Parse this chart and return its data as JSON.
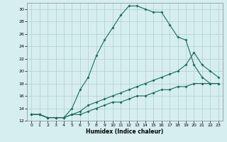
{
  "xlabel": "Humidex (Indice chaleur)",
  "bg_color": "#d6eef0",
  "grid_color": "#b0cdd0",
  "line_color": "#1a6b5a",
  "xlim": [
    -0.5,
    23.5
  ],
  "ylim": [
    12,
    31
  ],
  "xticks": [
    0,
    1,
    2,
    3,
    4,
    5,
    6,
    7,
    8,
    9,
    10,
    11,
    12,
    13,
    14,
    15,
    16,
    17,
    18,
    19,
    20,
    21,
    22,
    23
  ],
  "yticks": [
    12,
    14,
    16,
    18,
    20,
    22,
    24,
    26,
    28,
    30
  ],
  "line1_x": [
    0,
    1,
    2,
    3,
    4,
    5,
    6,
    7,
    8,
    9,
    10,
    11,
    12,
    13,
    14,
    15,
    16,
    17,
    18,
    19,
    20,
    21,
    22,
    23
  ],
  "line1_y": [
    13,
    13,
    12.5,
    12.5,
    12.5,
    14,
    17,
    19,
    22.5,
    25,
    27,
    29,
    30.5,
    30.5,
    30,
    29.5,
    29.5,
    27.5,
    25.5,
    25,
    21,
    19,
    18,
    18
  ],
  "line2_x": [
    0,
    1,
    2,
    3,
    4,
    5,
    6,
    7,
    8,
    9,
    10,
    11,
    12,
    13,
    14,
    15,
    16,
    17,
    18,
    19,
    20,
    21,
    22,
    23
  ],
  "line2_y": [
    13,
    13,
    12.5,
    12.5,
    12.5,
    13,
    13.5,
    14.5,
    15,
    15.5,
    16,
    16.5,
    17,
    17.5,
    18,
    18.5,
    19,
    19.5,
    20,
    21,
    23,
    21,
    20,
    19
  ],
  "line3_x": [
    0,
    1,
    2,
    3,
    4,
    5,
    6,
    7,
    8,
    9,
    10,
    11,
    12,
    13,
    14,
    15,
    16,
    17,
    18,
    19,
    20,
    21,
    22,
    23
  ],
  "line3_y": [
    13,
    13,
    12.5,
    12.5,
    12.5,
    13,
    13,
    13.5,
    14,
    14.5,
    15,
    15,
    15.5,
    16,
    16,
    16.5,
    17,
    17,
    17.5,
    17.5,
    18,
    18,
    18,
    18
  ]
}
